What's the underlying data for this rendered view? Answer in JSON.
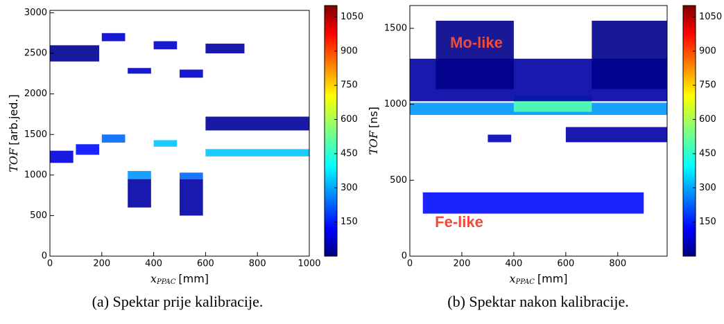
{
  "chart_data": [
    {
      "type": "heatmap",
      "caption": "(a) Spektar prije kalibracije.",
      "x_label": {
        "symbol": "x",
        "subscript": "PPAC",
        "unit": "[mm]"
      },
      "y_label": {
        "symbol": "TOF",
        "unit": "[arb.jed.]"
      },
      "xlim": [
        0,
        1000
      ],
      "ylim": [
        0,
        3030
      ],
      "xticks": [
        0,
        200,
        400,
        600,
        800,
        1000
      ],
      "yticks": [
        0,
        500,
        1000,
        1500,
        2000,
        2500,
        3000
      ],
      "clim": [
        0,
        1100
      ],
      "colorbar_ticks": [
        150,
        300,
        450,
        600,
        750,
        900,
        1050
      ],
      "bands": [
        {
          "x": [
            0,
            90
          ],
          "y": [
            1150,
            1300
          ],
          "value": 100
        },
        {
          "x": [
            100,
            190
          ],
          "y": [
            1250,
            1380
          ],
          "value": 150
        },
        {
          "x": [
            200,
            290
          ],
          "y": [
            1400,
            1500
          ],
          "value": 250
        },
        {
          "x": [
            300,
            390
          ],
          "y": [
            950,
            1050
          ],
          "value": 300
        },
        {
          "x": [
            400,
            490
          ],
          "y": [
            1350,
            1430
          ],
          "value": 350
        },
        {
          "x": [
            500,
            590
          ],
          "y": [
            950,
            1030
          ],
          "value": 250
        },
        {
          "x": [
            600,
            1000
          ],
          "y": [
            1230,
            1320
          ],
          "value": 350
        },
        {
          "x": [
            200,
            290
          ],
          "y": [
            2650,
            2750
          ],
          "value": 80
        },
        {
          "x": [
            300,
            390
          ],
          "y": [
            2250,
            2320
          ],
          "value": 80
        },
        {
          "x": [
            400,
            490
          ],
          "y": [
            2550,
            2650
          ],
          "value": 80
        },
        {
          "x": [
            500,
            590
          ],
          "y": [
            2200,
            2300
          ],
          "value": 80
        },
        {
          "x": [
            600,
            750
          ],
          "y": [
            2500,
            2620
          ],
          "value": 40
        },
        {
          "x": [
            0,
            190
          ],
          "y": [
            2400,
            2600
          ],
          "value": 20
        },
        {
          "x": [
            600,
            1000
          ],
          "y": [
            1550,
            1720
          ],
          "value": 30
        },
        {
          "x": [
            300,
            390
          ],
          "y": [
            600,
            950
          ],
          "value": 40
        },
        {
          "x": [
            500,
            590
          ],
          "y": [
            500,
            950
          ],
          "value": 40
        }
      ]
    },
    {
      "type": "heatmap",
      "caption": "(b) Spektar nakon kalibracije.",
      "x_label": {
        "symbol": "x",
        "subscript": "PPAC",
        "unit": "[mm]"
      },
      "y_label": {
        "symbol": "TOF",
        "unit": "[ns]"
      },
      "annotations": [
        "Mo-like",
        "Fe-like"
      ],
      "xlim": [
        0,
        990
      ],
      "ylim": [
        0,
        1650
      ],
      "xticks": [
        0,
        200,
        400,
        600,
        800
      ],
      "yticks": [
        0,
        500,
        1000,
        1500
      ],
      "clim": [
        0,
        1100
      ],
      "colorbar_ticks": [
        150,
        300,
        450,
        600,
        750,
        900,
        1050
      ],
      "bands": [
        {
          "x": [
            0,
            990
          ],
          "y": [
            930,
            1010
          ],
          "value": 300
        },
        {
          "x": [
            400,
            700
          ],
          "y": [
            950,
            1060
          ],
          "value": 500
        },
        {
          "x": [
            50,
            900
          ],
          "y": [
            280,
            420
          ],
          "value": 150
        },
        {
          "x": [
            0,
            990
          ],
          "y": [
            1020,
            1300
          ],
          "value": 40
        },
        {
          "x": [
            300,
            390
          ],
          "y": [
            750,
            800
          ],
          "value": 60
        },
        {
          "x": [
            600,
            990
          ],
          "y": [
            750,
            850
          ],
          "value": 40
        },
        {
          "x": [
            100,
            400
          ],
          "y": [
            1100,
            1550
          ],
          "value": 10
        },
        {
          "x": [
            700,
            990
          ],
          "y": [
            1100,
            1550
          ],
          "value": 15
        }
      ]
    }
  ]
}
